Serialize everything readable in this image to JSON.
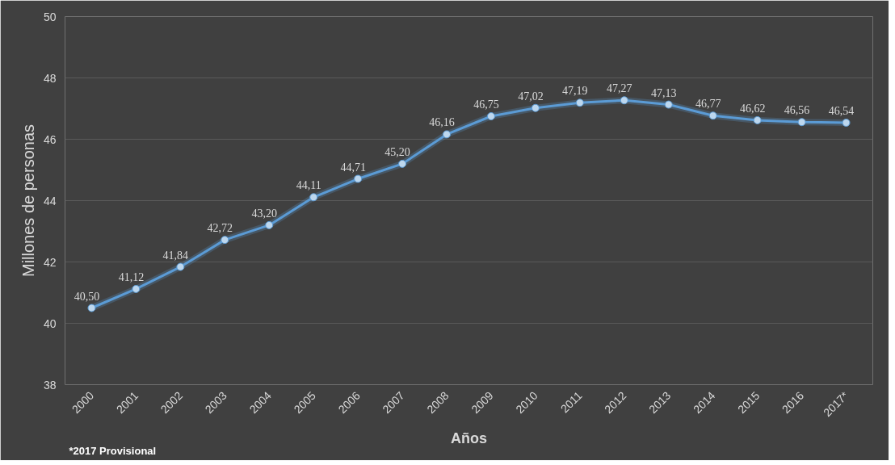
{
  "chart_data": {
    "type": "line",
    "xlabel": "Años",
    "ylabel": "Millones de personas",
    "categories": [
      "2000",
      "2001",
      "2002",
      "2003",
      "2004",
      "2005",
      "2006",
      "2007",
      "2008",
      "2009",
      "2010",
      "2011",
      "2012",
      "2013",
      "2014",
      "2015",
      "2016",
      "2017*"
    ],
    "series": [
      {
        "color": "#5b9bd5",
        "values": [
          40.5,
          41.12,
          41.84,
          42.72,
          43.2,
          44.11,
          44.71,
          45.2,
          46.16,
          46.75,
          47.02,
          47.19,
          47.27,
          47.13,
          46.77,
          46.62,
          46.56,
          46.54
        ],
        "value_labels": [
          "40,50",
          "41,12",
          "41,84",
          "42,72",
          "43,20",
          "44,11",
          "44,71",
          "45,20",
          "46,16",
          "46,75",
          "47,02",
          "47,19",
          "47,27",
          "47,13",
          "46,77",
          "46,62",
          "46,56",
          "46,54"
        ]
      }
    ],
    "ylim": [
      38,
      50
    ],
    "yticks": [
      38,
      40,
      42,
      44,
      46,
      48,
      50
    ],
    "grid": "y",
    "marker": "circle",
    "line_style": "solid",
    "annotations": [
      "*2017 Provisional"
    ]
  }
}
